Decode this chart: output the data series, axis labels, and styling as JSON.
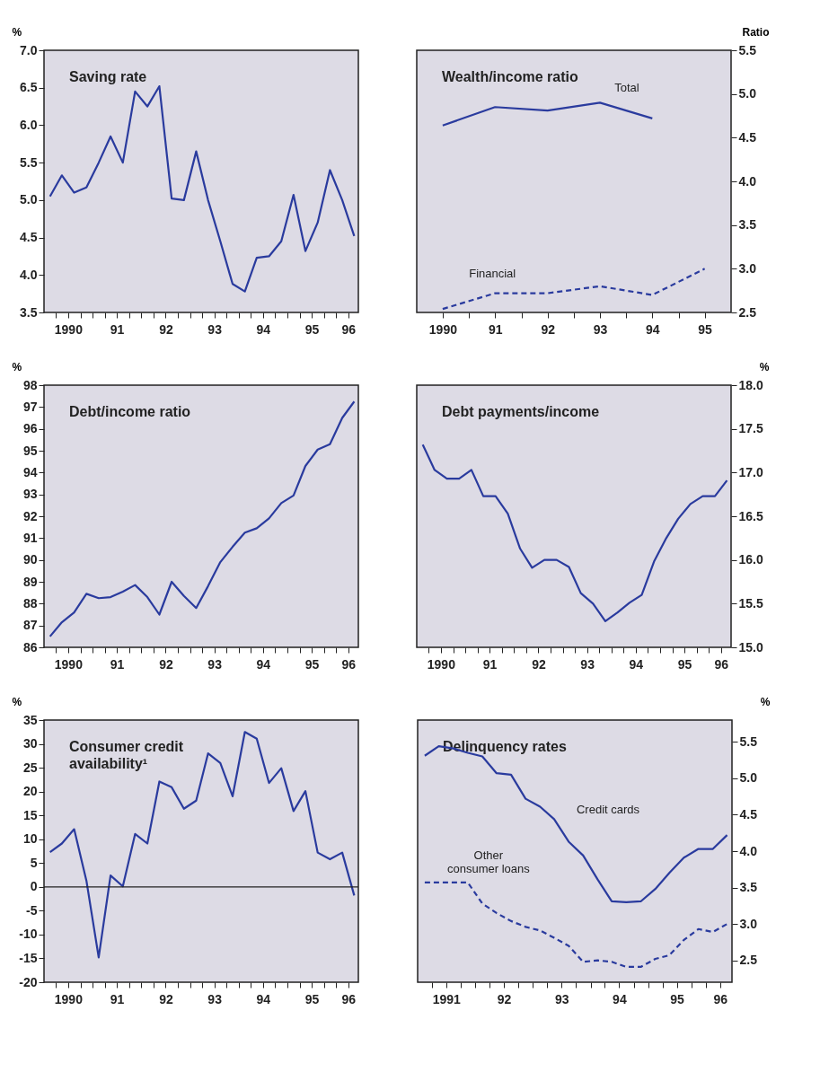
{
  "chart_data": [
    {
      "type": "line",
      "title": "Saving rate",
      "ylabel": "%",
      "x": [
        "1990-02-15",
        "1990-05-15",
        "1990-08-15",
        "1990-11-15",
        "1991-02-15",
        "1991-05-15",
        "1991-08-15",
        "1991-11-15",
        "1992-02-15",
        "1992-05-15",
        "1992-08-15",
        "1992-11-15",
        "1993-02-15",
        "1993-05-15",
        "1993-08-15",
        "1993-11-15",
        "1994-02-15",
        "1994-05-15",
        "1994-08-15",
        "1994-11-15",
        "1995-02-15",
        "1995-05-15",
        "1995-08-15",
        "1995-11-15",
        "1996-02-15",
        "1996-05-15"
      ],
      "xlim": [
        "1990-01-01",
        "1996-06-15"
      ],
      "xticks": [
        {
          "value": "1990-04-01",
          "label": null
        },
        {
          "value": "1990-07-01",
          "label": "1990"
        },
        {
          "value": "1990-10-01",
          "label": null
        },
        {
          "value": "1991-01-01",
          "label": null
        },
        {
          "value": "1991-04-01",
          "label": null
        },
        {
          "value": "1991-07-01",
          "label": "91"
        },
        {
          "value": "1991-10-01",
          "label": null
        },
        {
          "value": "1992-01-01",
          "label": null
        },
        {
          "value": "1992-04-01",
          "label": null
        },
        {
          "value": "1992-07-01",
          "label": "92"
        },
        {
          "value": "1992-10-01",
          "label": null
        },
        {
          "value": "1993-01-01",
          "label": null
        },
        {
          "value": "1993-04-01",
          "label": null
        },
        {
          "value": "1993-07-01",
          "label": "93"
        },
        {
          "value": "1993-10-01",
          "label": null
        },
        {
          "value": "1994-01-01",
          "label": null
        },
        {
          "value": "1994-04-01",
          "label": null
        },
        {
          "value": "1994-07-01",
          "label": "94"
        },
        {
          "value": "1994-10-01",
          "label": null
        },
        {
          "value": "1995-01-01",
          "label": null
        },
        {
          "value": "1995-04-01",
          "label": null
        },
        {
          "value": "1995-07-01",
          "label": "95"
        },
        {
          "value": "1995-10-01",
          "label": null
        },
        {
          "value": "1996-01-01",
          "label": null
        },
        {
          "value": "1996-04-01",
          "label": "96"
        }
      ],
      "ylim": [
        3.5,
        7.0
      ],
      "yticks": [
        3.5,
        {
          "value": 4,
          "label": "4.0"
        },
        4.5,
        {
          "value": 5,
          "label": "5.0"
        },
        5.5,
        {
          "value": 6,
          "label": "6.0"
        },
        6.5,
        {
          "value": 7,
          "label": "7.0"
        }
      ],
      "series": [
        {
          "color": "#2a3b9e",
          "line_style": "solid",
          "values": [
            5.05,
            5.33,
            5.1,
            5.17,
            5.5,
            5.85,
            5.5,
            6.45,
            6.25,
            6.52,
            5.02,
            5.0,
            5.65,
            5.0,
            4.45,
            3.88,
            3.78,
            4.23,
            4.25,
            4.45,
            5.07,
            4.32,
            4.7,
            5.4,
            5.0,
            4.52
          ]
        }
      ]
    },
    {
      "type": "line",
      "title": "Wealth/income ratio",
      "y2label": "Ratio",
      "xlim": [
        "1990-01-01",
        "1996-01-01"
      ],
      "xticks": [
        {
          "value": "1990-07-01",
          "label": "1990"
        },
        {
          "value": "1991-01-01",
          "label": null
        },
        {
          "value": "1991-07-01",
          "label": "91"
        },
        {
          "value": "1992-01-01",
          "label": null
        },
        {
          "value": "1992-07-01",
          "label": "92"
        },
        {
          "value": "1993-01-01",
          "label": null
        },
        {
          "value": "1993-07-01",
          "label": "93"
        },
        {
          "value": "1994-01-01",
          "label": null
        },
        {
          "value": "1994-07-01",
          "label": "94"
        },
        {
          "value": "1995-01-01",
          "label": null
        },
        {
          "value": "1995-07-01",
          "label": "95"
        }
      ],
      "y2lim": [
        2.5,
        5.5
      ],
      "y2ticks": [
        2.5,
        {
          "value": 3,
          "label": "3.0"
        },
        3.5,
        {
          "value": 4,
          "label": "4.0"
        },
        4.5,
        {
          "value": 5,
          "label": "5.0"
        },
        5.5
      ],
      "series": [
        {
          "name": "Total",
          "axis": "y2",
          "color": "#2a3b9e",
          "line_style": "solid",
          "x": [
            "1990-07-01",
            "1991-07-01",
            "1992-07-01",
            "1993-07-01",
            "1994-07-01"
          ],
          "values": [
            4.64,
            4.85,
            4.81,
            4.9,
            4.72
          ]
        },
        {
          "name": "Financial",
          "axis": "y2",
          "color": "#2a3b9e",
          "line_style": "dashed",
          "x": [
            "1990-07-01",
            "1991-07-01",
            "1992-07-01",
            "1993-07-01",
            "1994-07-01",
            "1995-07-01"
          ],
          "values": [
            2.54,
            2.72,
            2.72,
            2.8,
            2.7,
            3.0
          ]
        }
      ]
    },
    {
      "type": "line",
      "title": "Debt/income ratio",
      "ylabel": "%",
      "x": [
        "1990-02-15",
        "1990-05-15",
        "1990-08-15",
        "1990-11-15",
        "1991-02-15",
        "1991-05-15",
        "1991-08-15",
        "1991-11-15",
        "1992-02-15",
        "1992-05-15",
        "1992-08-15",
        "1992-11-15",
        "1993-02-15",
        "1993-05-15",
        "1993-08-15",
        "1993-11-15",
        "1994-02-15",
        "1994-05-15",
        "1994-08-15",
        "1994-11-15",
        "1995-02-15",
        "1995-05-15",
        "1995-08-15",
        "1995-11-15",
        "1996-02-15",
        "1996-05-15"
      ],
      "xlim": [
        "1990-01-01",
        "1996-06-15"
      ],
      "xticks": [
        {
          "value": "1990-04-01",
          "label": null
        },
        {
          "value": "1990-07-01",
          "label": "1990"
        },
        {
          "value": "1990-10-01",
          "label": null
        },
        {
          "value": "1991-01-01",
          "label": null
        },
        {
          "value": "1991-04-01",
          "label": null
        },
        {
          "value": "1991-07-01",
          "label": "91"
        },
        {
          "value": "1991-10-01",
          "label": null
        },
        {
          "value": "1992-01-01",
          "label": null
        },
        {
          "value": "1992-04-01",
          "label": null
        },
        {
          "value": "1992-07-01",
          "label": "92"
        },
        {
          "value": "1992-10-01",
          "label": null
        },
        {
          "value": "1993-01-01",
          "label": null
        },
        {
          "value": "1993-04-01",
          "label": null
        },
        {
          "value": "1993-07-01",
          "label": "93"
        },
        {
          "value": "1993-10-01",
          "label": null
        },
        {
          "value": "1994-01-01",
          "label": null
        },
        {
          "value": "1994-04-01",
          "label": null
        },
        {
          "value": "1994-07-01",
          "label": "94"
        },
        {
          "value": "1994-10-01",
          "label": null
        },
        {
          "value": "1995-01-01",
          "label": null
        },
        {
          "value": "1995-04-01",
          "label": null
        },
        {
          "value": "1995-07-01",
          "label": "95"
        },
        {
          "value": "1995-10-01",
          "label": null
        },
        {
          "value": "1996-01-01",
          "label": null
        },
        {
          "value": "1996-04-01",
          "label": "96"
        }
      ],
      "ylim": [
        86,
        98
      ],
      "yticks": [
        86,
        87,
        88,
        89,
        90,
        91,
        92,
        93,
        94,
        95,
        96,
        97,
        98
      ],
      "series": [
        {
          "color": "#2a3b9e",
          "line_style": "solid",
          "values": [
            86.5,
            87.15,
            87.6,
            88.45,
            88.25,
            88.3,
            88.55,
            88.85,
            88.3,
            87.5,
            89.0,
            88.35,
            87.8,
            88.8,
            89.9,
            90.6,
            91.25,
            91.45,
            91.9,
            92.6,
            92.95,
            94.3,
            95.05,
            95.3,
            96.5,
            97.25
          ]
        }
      ]
    },
    {
      "type": "line",
      "title": "Debt payments/income",
      "y2label": "%",
      "x": [
        "1990-02-15",
        "1990-05-15",
        "1990-08-15",
        "1990-11-15",
        "1991-02-15",
        "1991-05-15",
        "1991-08-15",
        "1991-11-15",
        "1992-02-15",
        "1992-05-15",
        "1992-08-15",
        "1992-11-15",
        "1993-02-15",
        "1993-05-15",
        "1993-08-15",
        "1993-11-15",
        "1994-02-15",
        "1994-05-15",
        "1994-08-15",
        "1994-11-15",
        "1995-02-15",
        "1995-05-15",
        "1995-08-15",
        "1995-11-15",
        "1996-02-15",
        "1996-05-15"
      ],
      "xlim": [
        "1990-01-01",
        "1996-06-15"
      ],
      "xticks": [
        {
          "value": "1990-04-01",
          "label": null
        },
        {
          "value": "1990-07-01",
          "label": "1990"
        },
        {
          "value": "1990-10-01",
          "label": null
        },
        {
          "value": "1991-01-01",
          "label": null
        },
        {
          "value": "1991-04-01",
          "label": null
        },
        {
          "value": "1991-07-01",
          "label": "91"
        },
        {
          "value": "1991-10-01",
          "label": null
        },
        {
          "value": "1992-01-01",
          "label": null
        },
        {
          "value": "1992-04-01",
          "label": null
        },
        {
          "value": "1992-07-01",
          "label": "92"
        },
        {
          "value": "1992-10-01",
          "label": null
        },
        {
          "value": "1993-01-01",
          "label": null
        },
        {
          "value": "1993-04-01",
          "label": null
        },
        {
          "value": "1993-07-01",
          "label": "93"
        },
        {
          "value": "1993-10-01",
          "label": null
        },
        {
          "value": "1994-01-01",
          "label": null
        },
        {
          "value": "1994-04-01",
          "label": null
        },
        {
          "value": "1994-07-01",
          "label": "94"
        },
        {
          "value": "1994-10-01",
          "label": null
        },
        {
          "value": "1995-01-01",
          "label": null
        },
        {
          "value": "1995-04-01",
          "label": null
        },
        {
          "value": "1995-07-01",
          "label": "95"
        },
        {
          "value": "1995-10-01",
          "label": null
        },
        {
          "value": "1996-01-01",
          "label": null
        },
        {
          "value": "1996-04-01",
          "label": "96"
        }
      ],
      "y2lim": [
        15,
        18
      ],
      "y2ticks": [
        {
          "value": 15,
          "label": "15.0"
        },
        15.5,
        {
          "value": 16,
          "label": "16.0"
        },
        16.5,
        {
          "value": 17,
          "label": "17.0"
        },
        17.5,
        {
          "value": 18,
          "label": "18.0"
        }
      ],
      "series": [
        {
          "axis": "y2",
          "color": "#2a3b9e",
          "line_style": "solid",
          "values": [
            17.32,
            17.03,
            16.93,
            16.93,
            17.03,
            16.73,
            16.73,
            16.53,
            16.13,
            15.91,
            16.0,
            16.0,
            15.92,
            15.62,
            15.5,
            15.3,
            15.4,
            15.51,
            15.6,
            15.98,
            16.25,
            16.47,
            16.64,
            16.73,
            16.73,
            16.91
          ]
        }
      ]
    },
    {
      "type": "line",
      "title": "Consumer credit\navailability¹",
      "ylabel": "%",
      "x": [
        "1990-02-15",
        "1990-05-15",
        "1990-08-15",
        "1990-11-15",
        "1991-02-15",
        "1991-05-15",
        "1991-08-15",
        "1991-11-15",
        "1992-02-15",
        "1992-05-15",
        "1992-08-15",
        "1992-11-15",
        "1993-02-15",
        "1993-05-15",
        "1993-08-15",
        "1993-11-15",
        "1994-02-15",
        "1994-05-15",
        "1994-08-15",
        "1994-11-15",
        "1995-02-15",
        "1995-05-15",
        "1995-08-15",
        "1995-11-15",
        "1996-02-15",
        "1996-05-15"
      ],
      "xlim": [
        "1990-01-01",
        "1996-06-15"
      ],
      "xticks": [
        {
          "value": "1990-04-01",
          "label": null
        },
        {
          "value": "1990-07-01",
          "label": "1990"
        },
        {
          "value": "1990-10-01",
          "label": null
        },
        {
          "value": "1991-01-01",
          "label": null
        },
        {
          "value": "1991-04-01",
          "label": null
        },
        {
          "value": "1991-07-01",
          "label": "91"
        },
        {
          "value": "1991-10-01",
          "label": null
        },
        {
          "value": "1992-01-01",
          "label": null
        },
        {
          "value": "1992-04-01",
          "label": null
        },
        {
          "value": "1992-07-01",
          "label": "92"
        },
        {
          "value": "1992-10-01",
          "label": null
        },
        {
          "value": "1993-01-01",
          "label": null
        },
        {
          "value": "1993-04-01",
          "label": null
        },
        {
          "value": "1993-07-01",
          "label": "93"
        },
        {
          "value": "1993-10-01",
          "label": null
        },
        {
          "value": "1994-01-01",
          "label": null
        },
        {
          "value": "1994-04-01",
          "label": null
        },
        {
          "value": "1994-07-01",
          "label": "94"
        },
        {
          "value": "1994-10-01",
          "label": null
        },
        {
          "value": "1995-01-01",
          "label": null
        },
        {
          "value": "1995-04-01",
          "label": null
        },
        {
          "value": "1995-07-01",
          "label": "95"
        },
        {
          "value": "1995-10-01",
          "label": null
        },
        {
          "value": "1996-01-01",
          "label": null
        },
        {
          "value": "1996-04-01",
          "label": "96"
        }
      ],
      "ylim": [
        -20,
        35
      ],
      "yticks": [
        -20,
        -15,
        -10,
        -5,
        0,
        5,
        10,
        15,
        20,
        25,
        30,
        35
      ],
      "ref_lines": [
        {
          "axis": "y",
          "value": 0,
          "label": null
        }
      ],
      "series": [
        {
          "color": "#2a3b9e",
          "line_style": "solid",
          "values": [
            7.3,
            9.1,
            12.1,
            1.3,
            -14.8,
            2.4,
            0.1,
            11.1,
            9.1,
            22.1,
            20.9,
            16.4,
            18.1,
            28.0,
            26.0,
            19.0,
            32.5,
            31.1,
            21.8,
            24.9,
            15.9,
            20.1,
            7.2,
            5.8,
            7.2,
            -1.8
          ]
        }
      ]
    },
    {
      "type": "line",
      "title": "Delinquency rates",
      "y2label": "%",
      "x": [
        "1991-02-15",
        "1991-05-15",
        "1991-08-15",
        "1991-11-15",
        "1992-02-15",
        "1992-05-15",
        "1992-08-15",
        "1992-11-15",
        "1993-02-15",
        "1993-05-15",
        "1993-08-15",
        "1993-11-15",
        "1994-02-15",
        "1994-05-15",
        "1994-08-15",
        "1994-11-15",
        "1995-02-15",
        "1995-05-15",
        "1995-08-15",
        "1995-11-15",
        "1996-02-15",
        "1996-05-15"
      ],
      "xlim": [
        "1991-01-01",
        "1996-06-15"
      ],
      "xticks": [
        {
          "value": "1991-04-01",
          "label": null
        },
        {
          "value": "1991-07-01",
          "label": "1991"
        },
        {
          "value": "1991-10-01",
          "label": null
        },
        {
          "value": "1992-01-01",
          "label": null
        },
        {
          "value": "1992-04-01",
          "label": null
        },
        {
          "value": "1992-07-01",
          "label": "92"
        },
        {
          "value": "1992-10-01",
          "label": null
        },
        {
          "value": "1993-01-01",
          "label": null
        },
        {
          "value": "1993-04-01",
          "label": null
        },
        {
          "value": "1993-07-01",
          "label": "93"
        },
        {
          "value": "1993-10-01",
          "label": null
        },
        {
          "value": "1994-01-01",
          "label": null
        },
        {
          "value": "1994-04-01",
          "label": null
        },
        {
          "value": "1994-07-01",
          "label": "94"
        },
        {
          "value": "1994-10-01",
          "label": null
        },
        {
          "value": "1995-01-01",
          "label": null
        },
        {
          "value": "1995-04-01",
          "label": null
        },
        {
          "value": "1995-07-01",
          "label": "95"
        },
        {
          "value": "1995-10-01",
          "label": null
        },
        {
          "value": "1996-01-01",
          "label": null
        },
        {
          "value": "1996-04-01",
          "label": "96"
        }
      ],
      "y2lim": [
        2.2,
        5.8
      ],
      "y2ticks": [
        2.5,
        {
          "value": 3,
          "label": "3.0"
        },
        3.5,
        {
          "value": 4,
          "label": "4.0"
        },
        4.5,
        {
          "value": 5,
          "label": "5.0"
        },
        5.5
      ],
      "series": [
        {
          "name": "Credit cards",
          "axis": "y2",
          "color": "#2a3b9e",
          "line_style": "solid",
          "values": [
            5.31,
            5.44,
            5.41,
            5.35,
            5.3,
            5.07,
            5.05,
            4.72,
            4.61,
            4.44,
            4.13,
            3.94,
            3.61,
            3.31,
            3.3,
            3.31,
            3.48,
            3.7,
            3.91,
            4.03,
            4.03,
            4.22
          ]
        },
        {
          "name": "Other\nconsumer loans",
          "axis": "y2",
          "color": "#2a3b9e",
          "line_style": "dashed",
          "values": [
            3.57,
            3.57,
            3.57,
            3.57,
            3.28,
            3.15,
            3.04,
            2.96,
            2.91,
            2.81,
            2.7,
            2.48,
            2.5,
            2.48,
            2.41,
            2.41,
            2.52,
            2.57,
            2.78,
            2.93,
            2.89,
            3.0
          ]
        }
      ]
    }
  ]
}
